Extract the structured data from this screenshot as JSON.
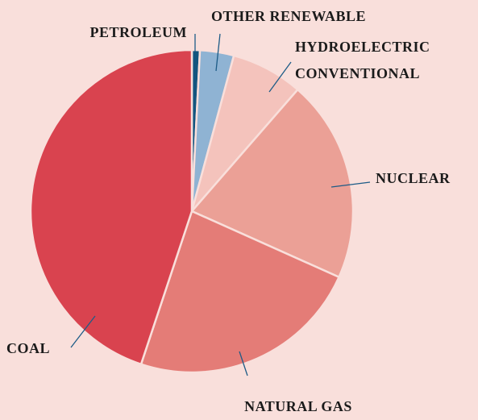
{
  "chart_data": {
    "type": "pie",
    "categories": [
      "PETROLEUM",
      "OTHER RENEWABLE",
      "HYDROELECTRIC CONVENTIONAL",
      "NUCLEAR",
      "NATURAL GAS",
      "COAL"
    ],
    "values": [
      0.8,
      3.4,
      7.2,
      20.3,
      23.4,
      44.9
    ],
    "colors": [
      "#13557f",
      "#8fb3d3",
      "#f4c3bc",
      "#eba096",
      "#e47c77",
      "#d9434f"
    ]
  }
}
